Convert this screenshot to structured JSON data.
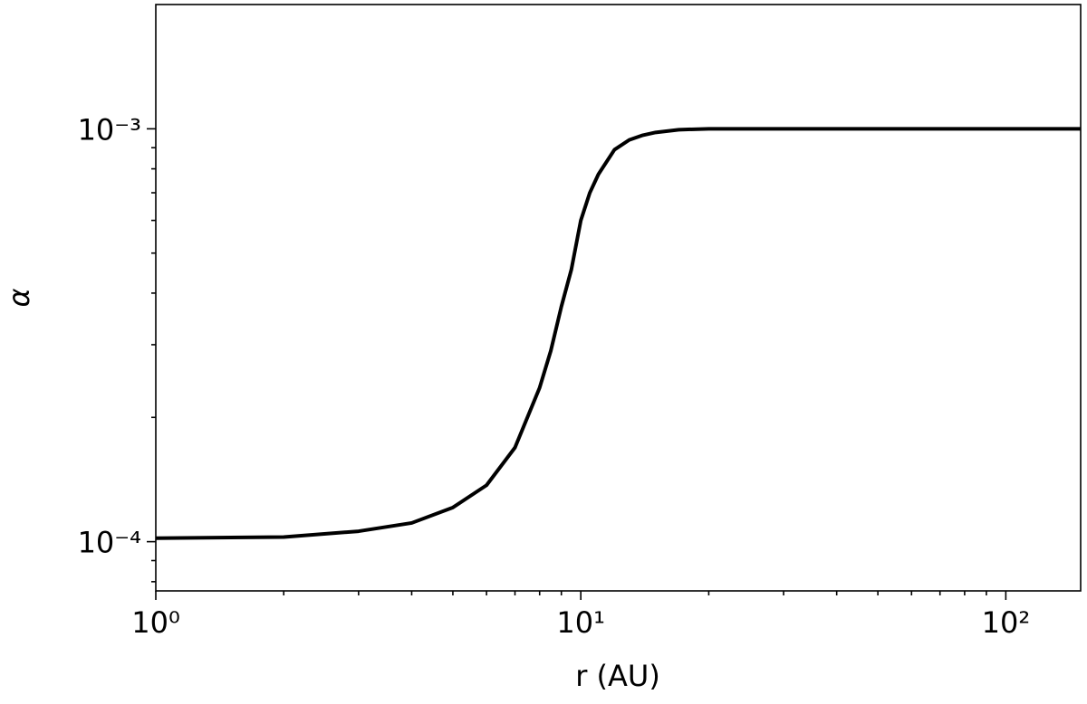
{
  "chart_data": {
    "type": "line",
    "xlabel": "r (AU)",
    "ylabel": "α",
    "xscale": "log",
    "yscale": "log",
    "xlim": [
      1,
      150
    ],
    "ylim": [
      7.6e-05,
      0.002
    ],
    "xticks": [
      {
        "value": 1,
        "label": "10⁰"
      },
      {
        "value": 10,
        "label": "10¹"
      },
      {
        "value": 100,
        "label": "10²"
      }
    ],
    "xminorticks": [
      2,
      3,
      4,
      5,
      6,
      7,
      8,
      9,
      20,
      30,
      40,
      50,
      60,
      70,
      80,
      90
    ],
    "yticks": [
      {
        "value": 0.0001,
        "label": "10⁻⁴"
      },
      {
        "value": 0.001,
        "label": "10⁻³"
      }
    ],
    "yminorticks": [
      8e-05,
      9e-05,
      0.0002,
      0.0003,
      0.0004,
      0.0005,
      0.0006,
      0.0007,
      0.0008,
      0.0009
    ],
    "series": [
      {
        "color": "#000000",
        "x": [
          1,
          2,
          3,
          4,
          5,
          6,
          7,
          8,
          8.5,
          9,
          9.5,
          10,
          10.5,
          11,
          12,
          13,
          14,
          15,
          17,
          20,
          30,
          50,
          100,
          150
        ],
        "values": [
          0.000102,
          0.0001026,
          0.000106,
          0.000111,
          0.000121,
          0.000137,
          0.000169,
          0.000236,
          0.00029,
          0.000371,
          0.000456,
          0.0006,
          0.0007,
          0.000776,
          0.00089,
          0.00094,
          0.000965,
          0.00098,
          0.000995,
          0.001,
          0.001,
          0.001,
          0.001,
          0.001
        ]
      }
    ]
  }
}
